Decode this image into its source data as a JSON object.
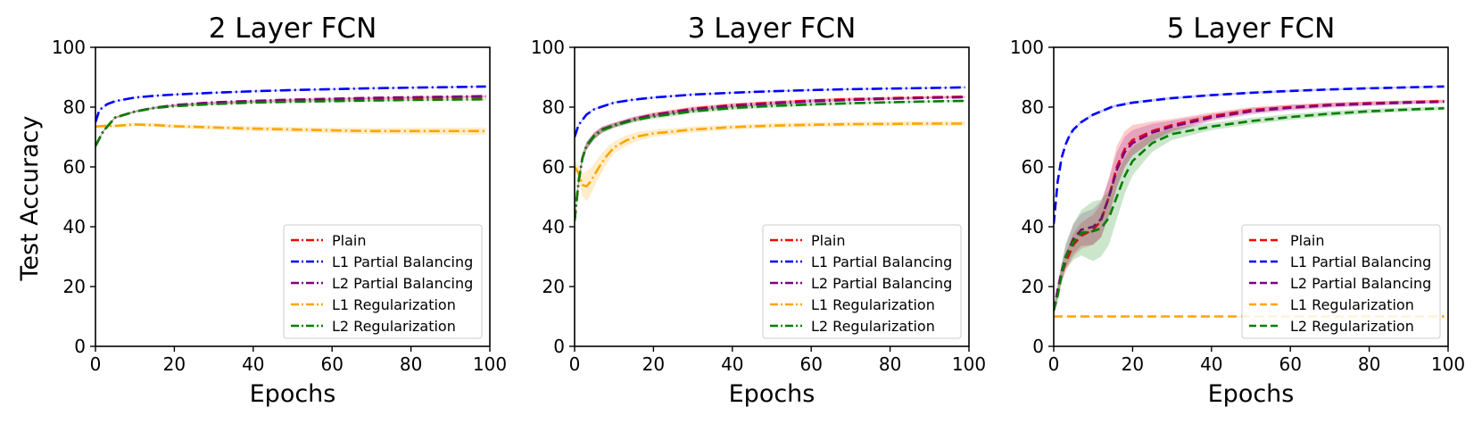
{
  "shared": {
    "ylabel": "Test Accuracy",
    "xlabel": "Epochs",
    "xticks": [
      0,
      20,
      40,
      60,
      80,
      100
    ],
    "yticks": [
      0,
      20,
      40,
      60,
      80,
      100
    ]
  },
  "colors": {
    "Plain": "#ff0000",
    "L1 Partial Balancing": "#0000ff",
    "L2 Partial Balancing": "#800080",
    "L1 Regularization": "#ffa500",
    "L2 Regularization": "#008000"
  },
  "chart_data": [
    {
      "type": "line",
      "title": "2 Layer FCN",
      "xlabel": "Epochs",
      "ylabel": "Test Accuracy",
      "xlim": [
        0,
        100
      ],
      "ylim": [
        0,
        100
      ],
      "line_style": "dash-dot",
      "legend_position": "lower-right",
      "grid": false,
      "series": [
        {
          "name": "Plain",
          "x": [
            0,
            2,
            5,
            10,
            15,
            20,
            30,
            40,
            50,
            60,
            70,
            80,
            90,
            99
          ],
          "y": [
            67,
            72,
            76.5,
            78.5,
            79.8,
            80.5,
            81.3,
            81.8,
            82.2,
            82.5,
            82.8,
            83,
            83.2,
            83.4
          ],
          "band": [
            [
              0,
              0.3
            ],
            [
              99,
              0.3
            ]
          ]
        },
        {
          "name": "L1 Partial Balancing",
          "x": [
            0,
            1,
            3,
            5,
            10,
            15,
            20,
            30,
            40,
            50,
            60,
            70,
            80,
            90,
            99
          ],
          "y": [
            75,
            79,
            81,
            82,
            83.2,
            83.8,
            84.2,
            84.8,
            85.3,
            85.7,
            86,
            86.3,
            86.5,
            86.7,
            86.9
          ],
          "band": [
            [
              0,
              0.2
            ],
            [
              99,
              0.2
            ]
          ]
        },
        {
          "name": "L2 Partial Balancing",
          "x": [
            0,
            2,
            5,
            10,
            15,
            20,
            30,
            40,
            50,
            60,
            70,
            80,
            90,
            99
          ],
          "y": [
            67,
            72,
            76.5,
            78.5,
            79.8,
            80.7,
            81.6,
            82.1,
            82.5,
            82.8,
            83.1,
            83.3,
            83.5,
            83.7
          ],
          "band": [
            [
              0,
              0.3
            ],
            [
              99,
              0.3
            ]
          ]
        },
        {
          "name": "L1 Regularization",
          "x": [
            0,
            2,
            5,
            10,
            15,
            20,
            30,
            40,
            50,
            60,
            70,
            80,
            90,
            99
          ],
          "y": [
            73.5,
            73.7,
            73.7,
            74.2,
            74,
            73.6,
            73.2,
            72.8,
            72.5,
            72.2,
            72,
            72,
            72,
            72
          ],
          "band": [
            [
              0,
              0.5
            ],
            [
              40,
              0.8
            ],
            [
              99,
              1.2
            ]
          ]
        },
        {
          "name": "L2 Regularization",
          "x": [
            0,
            2,
            5,
            10,
            15,
            20,
            30,
            40,
            50,
            60,
            70,
            80,
            90,
            99
          ],
          "y": [
            67,
            72,
            76.5,
            78.5,
            79.7,
            80.3,
            81,
            81.5,
            81.8,
            82,
            82.2,
            82.4,
            82.5,
            82.6
          ],
          "band": [
            [
              0,
              0.3
            ],
            [
              99,
              0.3
            ]
          ]
        }
      ]
    },
    {
      "type": "line",
      "title": "3 Layer FCN",
      "xlabel": "Epochs",
      "ylabel": "",
      "xlim": [
        0,
        100
      ],
      "ylim": [
        0,
        100
      ],
      "line_style": "dash-dot",
      "legend_position": "lower-right",
      "grid": false,
      "series": [
        {
          "name": "Plain",
          "x": [
            0,
            1,
            2,
            3,
            5,
            7,
            10,
            15,
            20,
            30,
            40,
            50,
            60,
            70,
            80,
            90,
            99
          ],
          "y": [
            42,
            55,
            63,
            67,
            70.5,
            72.5,
            74,
            76,
            77.5,
            79.5,
            80.7,
            81.5,
            82.2,
            82.7,
            83,
            83.3,
            83.5
          ],
          "band": [
            [
              0,
              1.5
            ],
            [
              10,
              0.8
            ],
            [
              99,
              0.3
            ]
          ]
        },
        {
          "name": "L1 Partial Balancing",
          "x": [
            0,
            1,
            3,
            5,
            10,
            15,
            20,
            30,
            40,
            50,
            60,
            70,
            80,
            90,
            99
          ],
          "y": [
            70,
            74,
            77.5,
            79.3,
            81.5,
            82.5,
            83.2,
            84.2,
            84.8,
            85.3,
            85.7,
            86,
            86.2,
            86.4,
            86.6
          ],
          "band": [
            [
              0,
              0.3
            ],
            [
              99,
              0.2
            ]
          ]
        },
        {
          "name": "L2 Partial Balancing",
          "x": [
            0,
            1,
            2,
            3,
            5,
            7,
            10,
            15,
            20,
            30,
            40,
            50,
            60,
            70,
            80,
            90,
            99
          ],
          "y": [
            42,
            55,
            63,
            67,
            70.5,
            72.5,
            74,
            76,
            77.3,
            79.2,
            80.4,
            81.2,
            81.9,
            82.4,
            82.8,
            83.1,
            83.3
          ],
          "band": [
            [
              0,
              1.5
            ],
            [
              10,
              0.8
            ],
            [
              99,
              0.3
            ]
          ]
        },
        {
          "name": "L1 Regularization",
          "x": [
            0,
            1,
            2,
            3,
            4,
            6,
            8,
            10,
            13,
            16,
            20,
            30,
            40,
            50,
            60,
            70,
            80,
            90,
            99
          ],
          "y": [
            60,
            58,
            54,
            53.5,
            55,
            59.5,
            63.5,
            66.5,
            68.8,
            70.2,
            71.2,
            72.5,
            73.3,
            73.8,
            74.1,
            74.3,
            74.4,
            74.5,
            74.5
          ],
          "band": [
            [
              0,
              1.5
            ],
            [
              3,
              5
            ],
            [
              6,
              3.5
            ],
            [
              10,
              2
            ],
            [
              20,
              1.2
            ],
            [
              40,
              0.8
            ],
            [
              99,
              0.8
            ]
          ]
        },
        {
          "name": "L2 Regularization",
          "x": [
            0,
            1,
            2,
            3,
            5,
            7,
            10,
            15,
            20,
            30,
            40,
            50,
            60,
            70,
            80,
            90,
            99
          ],
          "y": [
            42,
            55,
            63,
            67,
            70.3,
            72.3,
            73.8,
            75.6,
            76.8,
            78.6,
            79.7,
            80.4,
            80.9,
            81.3,
            81.6,
            81.9,
            82.1
          ],
          "band": [
            [
              0,
              1.5
            ],
            [
              10,
              0.8
            ],
            [
              99,
              0.3
            ]
          ]
        }
      ]
    },
    {
      "type": "line",
      "title": "5 Layer FCN",
      "xlabel": "Epochs",
      "ylabel": "",
      "xlim": [
        0,
        100
      ],
      "ylim": [
        0,
        100
      ],
      "line_style": "dashed",
      "legend_position": "lower-right",
      "grid": false,
      "series": [
        {
          "name": "Plain",
          "x": [
            0,
            1,
            2,
            3,
            5,
            7,
            10,
            12,
            14,
            16,
            18,
            20,
            25,
            30,
            40,
            50,
            60,
            70,
            80,
            90,
            99
          ],
          "y": [
            12,
            18,
            24,
            28,
            34,
            37,
            39,
            42,
            50,
            60,
            66,
            69,
            72,
            74,
            77,
            79,
            80,
            80.8,
            81.3,
            81.7,
            82
          ],
          "band": [
            [
              0,
              1.5
            ],
            [
              5,
              4
            ],
            [
              10,
              5
            ],
            [
              16,
              7
            ],
            [
              22,
              4
            ],
            [
              30,
              2
            ],
            [
              40,
              1.2
            ],
            [
              60,
              0.8
            ],
            [
              99,
              0.5
            ]
          ]
        },
        {
          "name": "L1 Partial Balancing",
          "x": [
            0,
            1,
            2,
            3,
            4,
            5,
            7,
            10,
            15,
            20,
            30,
            40,
            50,
            60,
            70,
            80,
            90,
            99
          ],
          "y": [
            41,
            55,
            63,
            67.5,
            70.5,
            72.5,
            75,
            77.5,
            80.2,
            81.5,
            83,
            84,
            84.8,
            85.4,
            85.9,
            86.3,
            86.6,
            86.9
          ],
          "band": [
            [
              0,
              0.5
            ],
            [
              5,
              0.5
            ],
            [
              99,
              0.3
            ]
          ]
        },
        {
          "name": "L2 Partial Balancing",
          "x": [
            0,
            1,
            2,
            3,
            5,
            7,
            10,
            12,
            14,
            16,
            18,
            20,
            25,
            30,
            40,
            50,
            60,
            70,
            80,
            90,
            99
          ],
          "y": [
            12,
            19,
            25,
            30,
            36,
            39,
            40,
            42.5,
            50,
            59,
            65,
            68,
            71.5,
            73.5,
            76.5,
            78.6,
            79.8,
            80.6,
            81.1,
            81.5,
            81.8
          ],
          "band": [
            [
              0,
              1.5
            ],
            [
              5,
              5
            ],
            [
              10,
              6
            ],
            [
              16,
              6
            ],
            [
              22,
              3.5
            ],
            [
              30,
              2
            ],
            [
              40,
              1.2
            ],
            [
              99,
              0.5
            ]
          ]
        },
        {
          "name": "L1 Regularization",
          "x": [
            0,
            99
          ],
          "y": [
            10,
            10
          ],
          "band": [
            [
              0,
              0.1
            ],
            [
              99,
              0.1
            ]
          ]
        },
        {
          "name": "L2 Regularization",
          "x": [
            0,
            1,
            2,
            3,
            5,
            7,
            10,
            12,
            14,
            16,
            18,
            20,
            25,
            30,
            40,
            50,
            60,
            70,
            80,
            90,
            99
          ],
          "y": [
            12,
            17,
            24,
            30,
            35,
            38,
            38.5,
            39.5,
            43,
            50,
            57,
            62,
            68,
            71,
            73.5,
            75.3,
            76.7,
            77.8,
            78.6,
            79.2,
            79.6
          ],
          "band": [
            [
              0,
              1.5
            ],
            [
              5,
              6
            ],
            [
              10,
              10
            ],
            [
              14,
              9
            ],
            [
              18,
              6
            ],
            [
              22,
              3.5
            ],
            [
              30,
              2
            ],
            [
              40,
              1.2
            ],
            [
              99,
              0.6
            ]
          ]
        }
      ]
    }
  ]
}
